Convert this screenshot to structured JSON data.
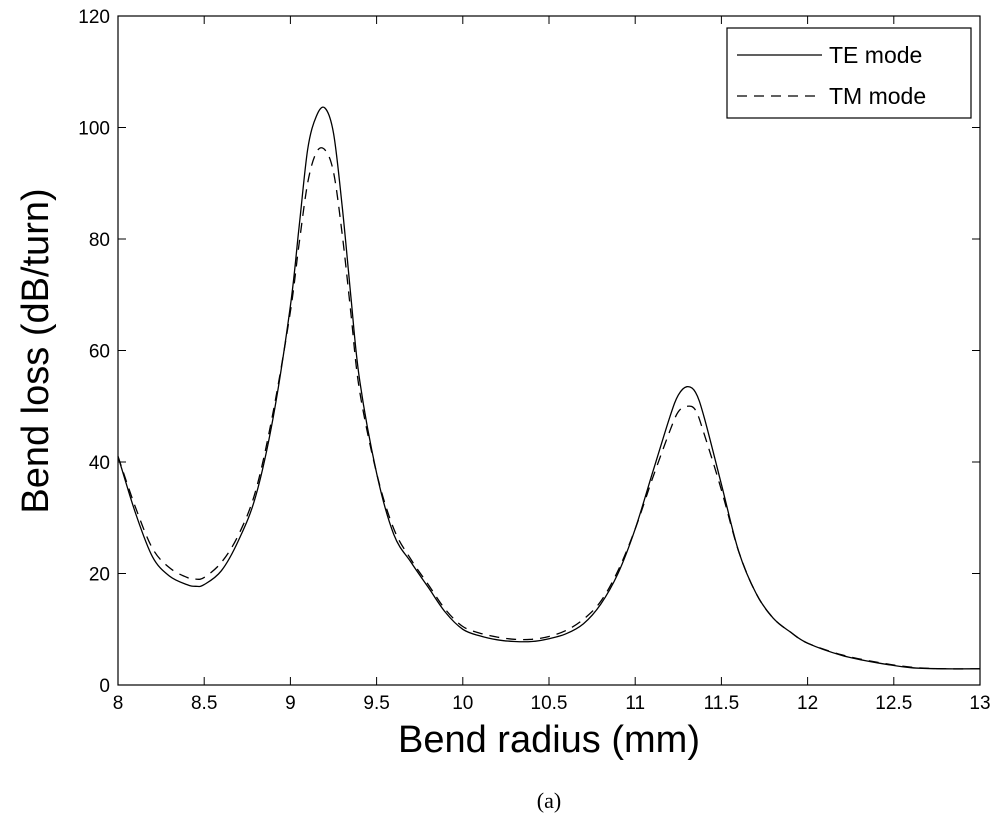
{
  "chart_data": {
    "type": "line",
    "title": "",
    "xlabel": "Bend radius (mm)",
    "ylabel": "Bend loss (dB/turn)",
    "caption": "(a)",
    "xlim": [
      8,
      13
    ],
    "ylim": [
      0,
      120
    ],
    "xticks": [
      8,
      8.5,
      9,
      9.5,
      10,
      10.5,
      11,
      11.5,
      12,
      12.5,
      13
    ],
    "xtick_labels": [
      "8",
      "8.5",
      "9",
      "9.5",
      "10",
      "10.5",
      "11",
      "11.5",
      "12",
      "12.5",
      "13"
    ],
    "yticks": [
      0,
      20,
      40,
      60,
      80,
      100,
      120
    ],
    "ytick_labels": [
      "0",
      "20",
      "40",
      "60",
      "80",
      "100",
      "120"
    ],
    "grid": false,
    "legend_position": "top-right",
    "series": [
      {
        "name": "TE mode",
        "style": "solid",
        "color": "#000000",
        "x": [
          8.0,
          8.1,
          8.2,
          8.3,
          8.4,
          8.45,
          8.5,
          8.6,
          8.7,
          8.8,
          8.9,
          9.0,
          9.05,
          9.1,
          9.15,
          9.2,
          9.25,
          9.3,
          9.35,
          9.4,
          9.5,
          9.6,
          9.7,
          9.8,
          9.9,
          10.0,
          10.1,
          10.2,
          10.3,
          10.4,
          10.5,
          10.6,
          10.7,
          10.8,
          10.9,
          11.0,
          11.1,
          11.2,
          11.25,
          11.3,
          11.35,
          11.4,
          11.5,
          11.6,
          11.7,
          11.8,
          11.9,
          12.0,
          12.2,
          12.4,
          12.6,
          12.8,
          13.0
        ],
        "y": [
          41,
          31,
          23,
          19.5,
          18,
          17.7,
          18,
          20.5,
          26,
          34,
          48,
          68,
          82,
          96,
          102,
          103.5,
          99,
          86,
          70,
          55,
          38,
          27,
          22,
          17.5,
          13,
          10,
          8.8,
          8.1,
          7.8,
          7.8,
          8.3,
          9.2,
          11,
          14.5,
          20,
          28,
          38,
          48,
          52,
          53.5,
          52.5,
          48,
          36,
          24,
          16.5,
          12,
          9.5,
          7.5,
          5.3,
          4,
          3.1,
          2.9,
          2.9
        ]
      },
      {
        "name": "TM mode",
        "style": "dashed",
        "color": "#000000",
        "x": [
          8.0,
          8.1,
          8.2,
          8.3,
          8.4,
          8.45,
          8.5,
          8.6,
          8.7,
          8.8,
          8.9,
          9.0,
          9.05,
          9.1,
          9.15,
          9.2,
          9.25,
          9.3,
          9.35,
          9.4,
          9.5,
          9.6,
          9.7,
          9.8,
          9.9,
          10.0,
          10.1,
          10.2,
          10.3,
          10.4,
          10.5,
          10.6,
          10.7,
          10.8,
          10.9,
          11.0,
          11.1,
          11.2,
          11.25,
          11.3,
          11.35,
          11.4,
          11.5,
          11.6,
          11.7,
          11.8,
          11.9,
          12.0,
          12.2,
          12.4,
          12.6,
          12.8,
          13.0
        ],
        "y": [
          41,
          32,
          24.5,
          21,
          19.3,
          19,
          19.3,
          22,
          27,
          35,
          49,
          67,
          79,
          90,
          95.5,
          96,
          92,
          81,
          67,
          53,
          38,
          28,
          22.5,
          18,
          13.5,
          10.5,
          9.3,
          8.6,
          8.2,
          8.2,
          8.7,
          9.8,
          11.8,
          15,
          20.5,
          28,
          37,
          45.5,
          49,
          50,
          49.3,
          45,
          35,
          24,
          16.5,
          12,
          9.5,
          7.5,
          5.4,
          4.1,
          3.2,
          2.9,
          2.9
        ]
      }
    ]
  }
}
